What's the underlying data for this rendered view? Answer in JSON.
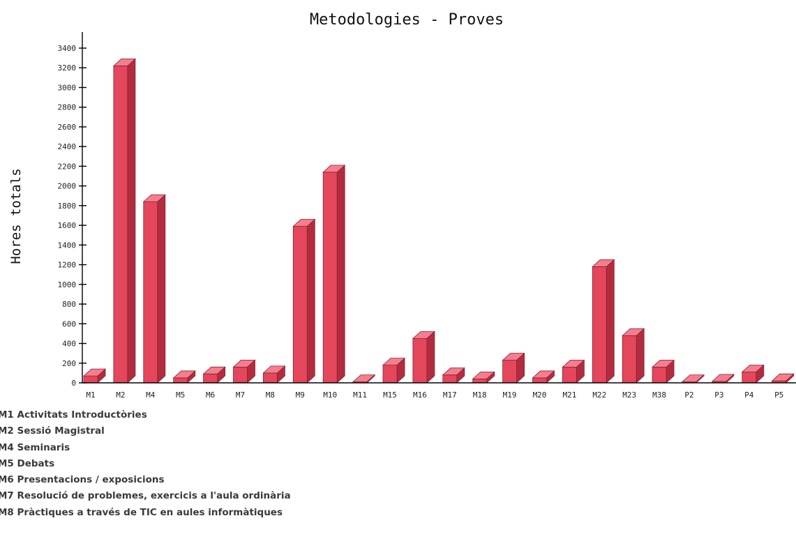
{
  "chart_data": {
    "type": "bar",
    "title": "Metodologies - Proves",
    "xlabel": "",
    "ylabel": "Hores totals",
    "ylim": [
      0,
      3400
    ],
    "yticks": [
      0,
      200,
      400,
      600,
      800,
      1000,
      1200,
      1400,
      1600,
      1800,
      2000,
      2200,
      2400,
      2600,
      2800,
      3000,
      3200,
      3400
    ],
    "grid": false,
    "style": "3d",
    "color": "#e4475c",
    "categories": [
      "M1",
      "M2",
      "M4",
      "M5",
      "M6",
      "M7",
      "M8",
      "M9",
      "M10",
      "M11",
      "M15",
      "M16",
      "M17",
      "M18",
      "M19",
      "M20",
      "M21",
      "M22",
      "M23",
      "M38",
      "P2",
      "P3",
      "P4",
      "P5"
    ],
    "values": [
      70,
      3220,
      1840,
      50,
      90,
      160,
      100,
      1590,
      2140,
      10,
      180,
      450,
      80,
      40,
      230,
      50,
      160,
      1180,
      480,
      160,
      10,
      15,
      110,
      20
    ]
  },
  "legend_items": [
    "M1 Activitats Introductòries",
    "M2 Sessió Magistral",
    "M4 Seminaris",
    "M5 Debats",
    "M6 Presentacions / exposicions",
    "M7 Resolució de problemes, exercicis a l'aula ordinària",
    "M8 Pràctiques a través de TIC en aules informàtiques"
  ]
}
